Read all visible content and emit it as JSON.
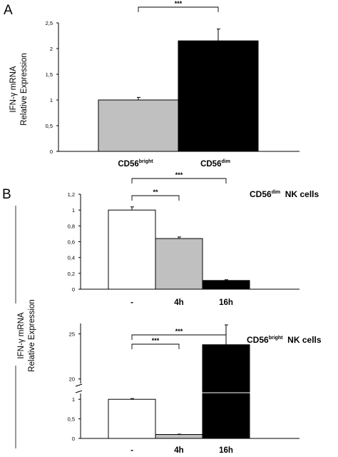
{
  "panel_letters": [
    "A",
    "B"
  ],
  "colors": {
    "gray": "#c0c0c0",
    "black": "#000000",
    "white": "#ffffff"
  },
  "chart_data": [
    {
      "panel": "A",
      "type": "bar",
      "title": "",
      "ylabel_line1": "IFN-γ mRNA",
      "ylabel_line2": "Relative Expression",
      "categories": [
        {
          "main": "CD56",
          "sup": "bright"
        },
        {
          "main": "CD56",
          "sup": "dim"
        }
      ],
      "values": [
        1.0,
        2.15
      ],
      "errors": [
        0.05,
        0.23
      ],
      "colors": [
        "#c0c0c0",
        "#000000"
      ],
      "ylim": [
        0,
        2.5
      ],
      "yticks": [
        0,
        0.5,
        1,
        1.5,
        2,
        2.5
      ],
      "ytick_labels": [
        "0",
        "0,5",
        "1",
        "1,5",
        "2",
        "2,5"
      ],
      "significance": [
        {
          "from": 0,
          "to": 1,
          "label": "***"
        }
      ]
    },
    {
      "panel": "B-top",
      "type": "bar",
      "title_main": "CD56",
      "title_sup": "dim",
      "title_rest": "NK cells",
      "categories": [
        "-",
        "4h",
        "16h"
      ],
      "values": [
        1.0,
        0.64,
        0.11
      ],
      "errors": [
        0.04,
        0.02,
        0.01
      ],
      "colors": [
        "#ffffff",
        "#c0c0c0",
        "#000000"
      ],
      "ylim": [
        0,
        1.2
      ],
      "yticks": [
        0,
        0.2,
        0.4,
        0.6,
        0.8,
        1,
        1.2
      ],
      "ytick_labels": [
        "0",
        "0,2",
        "0,4",
        "0,6",
        "0,8",
        "1",
        "1,2"
      ],
      "significance": [
        {
          "from": 0,
          "to": 1,
          "label": "**"
        },
        {
          "from": 0,
          "to": 2,
          "label": "***"
        }
      ]
    },
    {
      "panel": "B-bottom",
      "type": "bar",
      "title_main": "CD56",
      "title_sup": "bright",
      "title_rest": "NK cells",
      "categories": [
        "-",
        "4h",
        "16h"
      ],
      "values": [
        1.0,
        0.1,
        23.8
      ],
      "errors": [
        0.02,
        0.01,
        2.2
      ],
      "colors": [
        "#ffffff",
        "#c0c0c0",
        "#000000"
      ],
      "axis_break": [
        1.15,
        19.5
      ],
      "yticks": [
        0,
        0.5,
        1,
        20,
        25
      ],
      "ytick_labels": [
        "0",
        "0,5",
        "1",
        "20",
        "25"
      ],
      "significance": [
        {
          "from": 0,
          "to": 1,
          "label": "***"
        },
        {
          "from": 0,
          "to": 2,
          "label": "***"
        }
      ]
    }
  ],
  "shared_ylabel_B_line1": "IFN-γ mRNA",
  "shared_ylabel_B_line2": "Relative Expression"
}
